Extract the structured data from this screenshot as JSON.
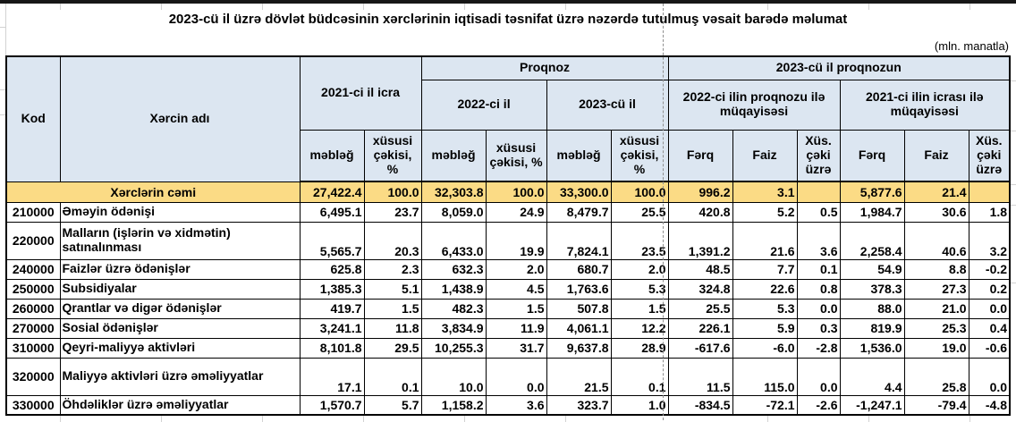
{
  "title": "2023-cü il üzrə dövlət büdcəsinin xərclərinin iqtisadi təsnifat üzrə nəzərdə tutulmuş vəsait barədə məlumat",
  "unit_note": "(mln. manatla)",
  "colors": {
    "header_bg": "#DCE6F1",
    "total_row_bg": "#FBDB85",
    "border": "#000000",
    "page_break_line": "#8F8F8F"
  },
  "table": {
    "header": {
      "kod": "Kod",
      "name": "Xərcin adı",
      "icra2021": "2021-ci il icra",
      "proqnoz": "Proqnoz",
      "proq2023": "2023-cü il proqnozun",
      "y2022": "2022-ci il",
      "y2023": "2023-cü il",
      "cmp2022": "2022-ci ilin proqnozu ilə müqayisəsi",
      "cmp2021": "2021-ci ilin icrası ilə müqayisəsi",
      "mebleg": "məbləğ",
      "xususi": "xüsusi çəkisi, %",
      "ferq": "Fərq",
      "faiz": "Faiz",
      "xusceki": "Xüs. çəki üzrə"
    },
    "rows": [
      {
        "total": true,
        "label": "Xərclərin cəmi",
        "values": [
          "27,422.4",
          "100.0",
          "32,303.8",
          "100.0",
          "33,300.0",
          "100.0",
          "996.2",
          "3.1",
          "",
          "5,877.6",
          "21.4",
          ""
        ]
      },
      {
        "code": "210000",
        "name": "Əməyin ödənişi",
        "values": [
          "6,495.1",
          "23.7",
          "8,059.0",
          "24.9",
          "8,479.7",
          "25.5",
          "420.8",
          "5.2",
          "0.5",
          "1,984.7",
          "30.6",
          "1.8"
        ]
      },
      {
        "code": "220000",
        "name": "Malların (işlərin və xidmətin) satınalınması",
        "tall": true,
        "values": [
          "5,565.7",
          "20.3",
          "6,433.0",
          "19.9",
          "7,824.1",
          "23.5",
          "1,391.2",
          "21.6",
          "3.6",
          "2,258.4",
          "40.6",
          "3.2"
        ]
      },
      {
        "code": "240000",
        "name": "Faizlər üzrə ödənişlər",
        "values": [
          "625.8",
          "2.3",
          "632.3",
          "2.0",
          "680.7",
          "2.0",
          "48.5",
          "7.7",
          "0.1",
          "54.9",
          "8.8",
          "-0.2"
        ]
      },
      {
        "code": "250000",
        "name": "Subsidiyalar",
        "values": [
          "1,385.3",
          "5.1",
          "1,438.9",
          "4.5",
          "1,763.6",
          "5.3",
          "324.8",
          "22.6",
          "0.8",
          "378.3",
          "27.3",
          "0.2"
        ]
      },
      {
        "code": "260000",
        "name": "Qrantlar və digər ödənişlər",
        "values": [
          "419.7",
          "1.5",
          "482.3",
          "1.5",
          "507.8",
          "1.5",
          "25.5",
          "5.3",
          "0.0",
          "88.0",
          "21.0",
          "0.0"
        ]
      },
      {
        "code": "270000",
        "name": "Sosial ödənişlər",
        "values": [
          "3,241.1",
          "11.8",
          "3,834.9",
          "11.9",
          "4,061.1",
          "12.2",
          "226.1",
          "5.9",
          "0.3",
          "819.9",
          "25.3",
          "0.4"
        ]
      },
      {
        "code": "310000",
        "name": "Qeyri-maliyyə aktivləri",
        "values": [
          "8,101.8",
          "29.5",
          "10,255.3",
          "31.7",
          "9,637.8",
          "28.9",
          "-617.6",
          "-6.0",
          "-2.8",
          "1,536.0",
          "19.0",
          "-0.6"
        ]
      },
      {
        "code": "320000",
        "name": "Maliyyə aktivləri üzrə əməliyyatlar",
        "tall": true,
        "values": [
          "17.1",
          "0.1",
          "10.0",
          "0.0",
          "21.5",
          "0.1",
          "11.5",
          "115.0",
          "0.0",
          "4.4",
          "25.8",
          "0.0"
        ]
      },
      {
        "code": "330000",
        "name": "Öhdəliklər üzrə əməliyyatlar",
        "values": [
          "1,570.7",
          "5.7",
          "1,158.2",
          "3.6",
          "323.7",
          "1.0",
          "-834.5",
          "-72.1",
          "-2.6",
          "-1,247.1",
          "-79.4",
          "-4.8"
        ]
      }
    ]
  }
}
